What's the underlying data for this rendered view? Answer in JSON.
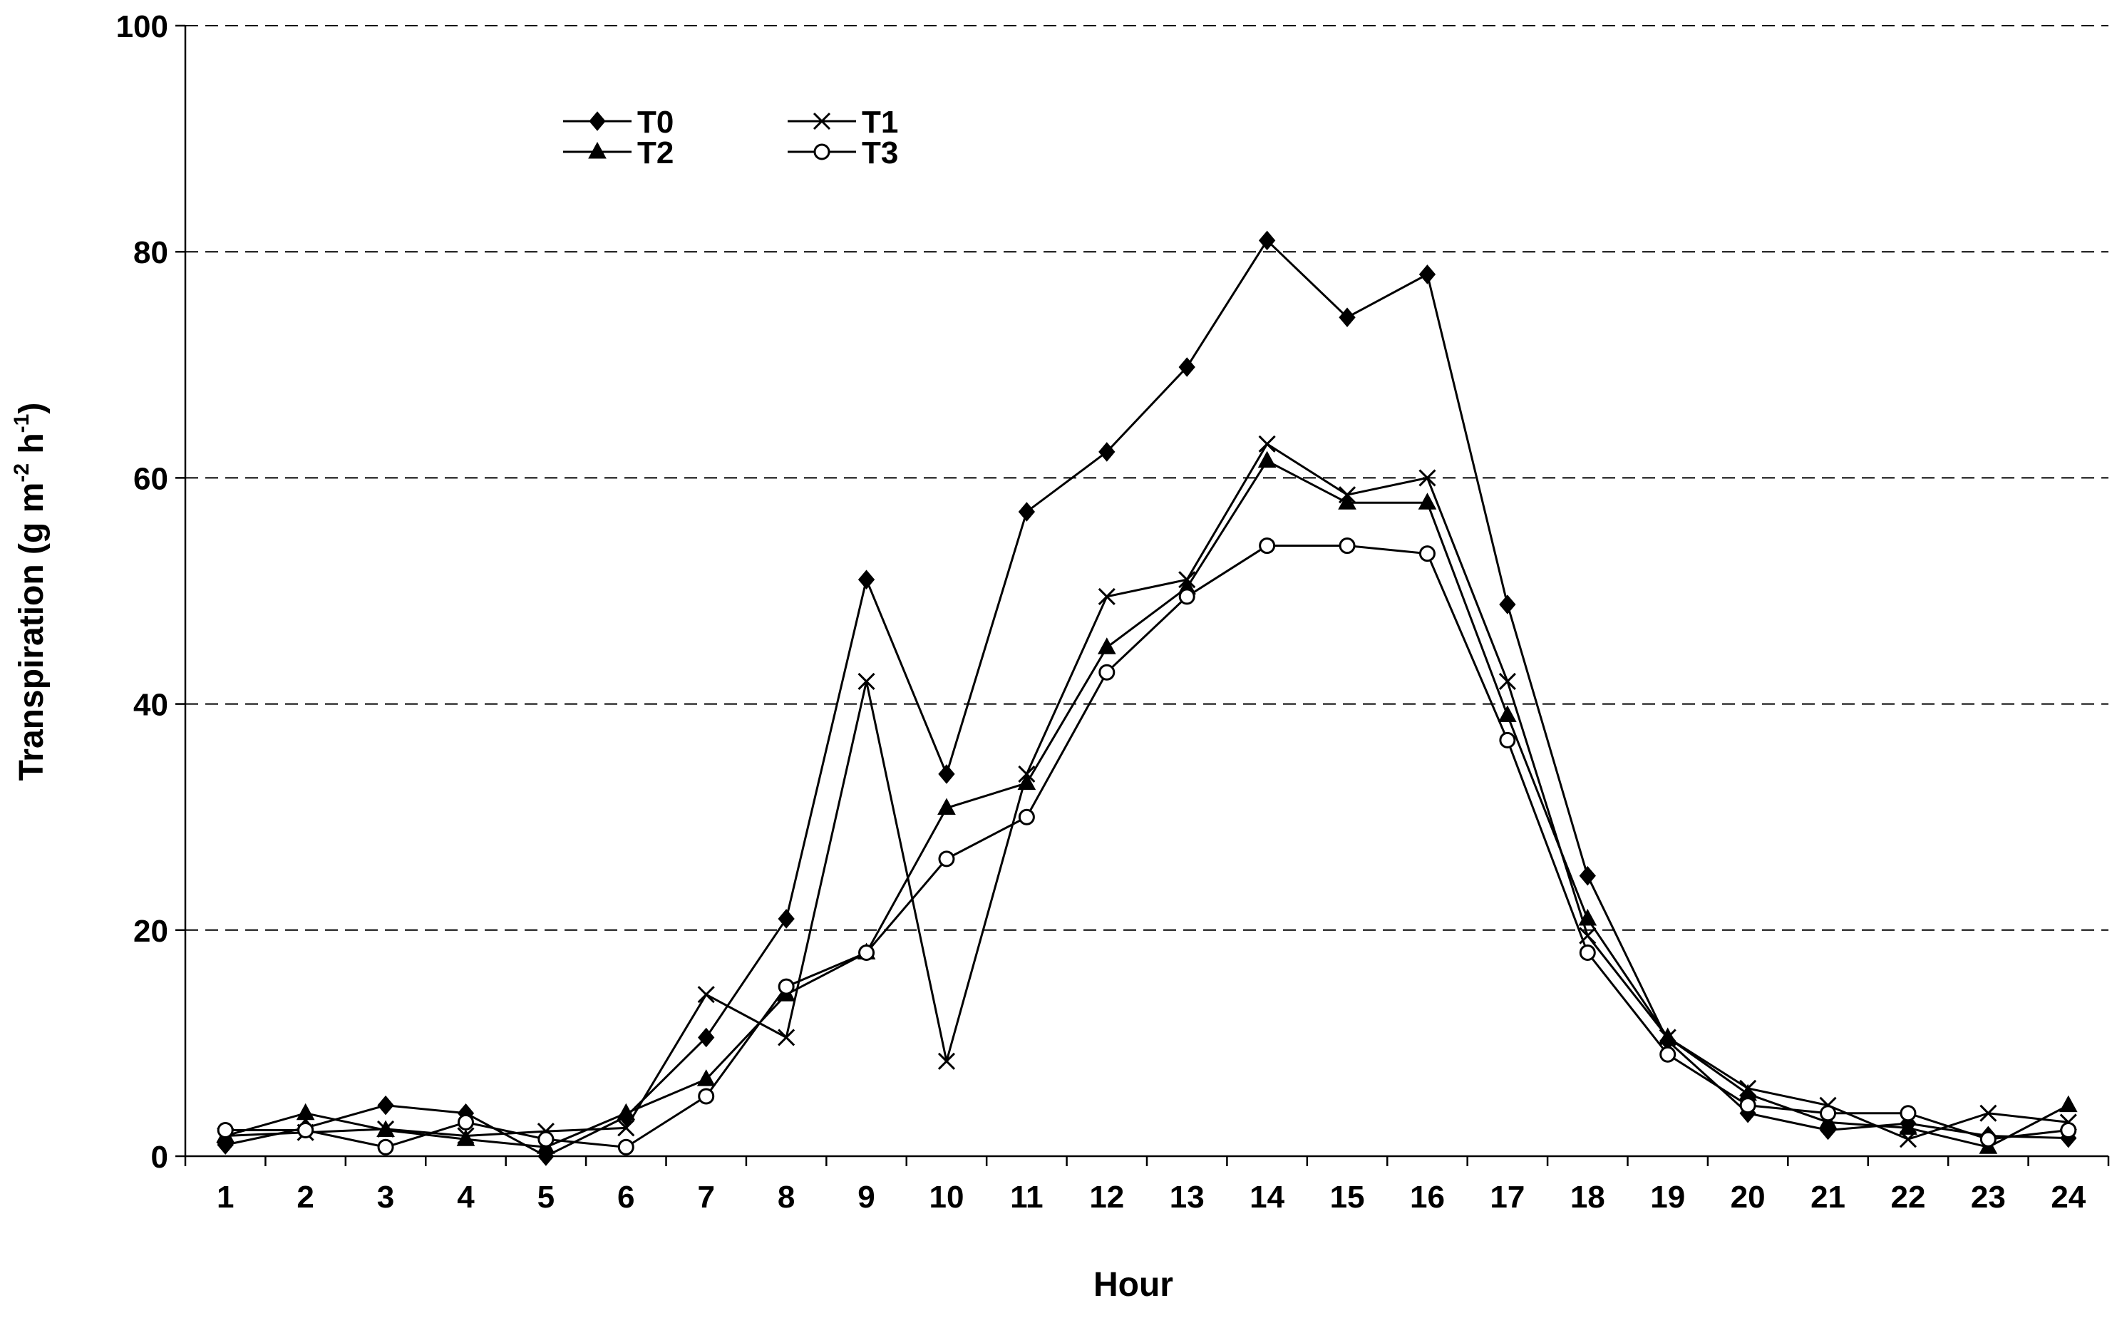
{
  "chart_data": {
    "type": "line",
    "title": "",
    "xlabel": "Hour",
    "ylabel": {
      "main": "Transpiration (g m",
      "sup1": "-2",
      "mid": " h",
      "sup2": "-1",
      "end": ")"
    },
    "ylim": [
      0,
      100
    ],
    "yticks": [
      0,
      20,
      40,
      60,
      80,
      100
    ],
    "ytick_labels": [
      "0",
      "20",
      "40",
      "60",
      "80",
      "100"
    ],
    "grid": "horizontal dashed",
    "legend_position": "top-left",
    "x": [
      1,
      2,
      3,
      4,
      5,
      6,
      7,
      8,
      9,
      10,
      11,
      12,
      13,
      14,
      15,
      16,
      17,
      18,
      19,
      20,
      21,
      22,
      23,
      24
    ],
    "xtick_labels": [
      "1",
      "2",
      "3",
      "4",
      "5",
      "6",
      "7",
      "8",
      "9",
      "10",
      "11",
      "12",
      "13",
      "14",
      "15",
      "16",
      "17",
      "18",
      "19",
      "20",
      "21",
      "22",
      "23",
      "24"
    ],
    "series": [
      {
        "name": "T0",
        "marker": "diamond",
        "color": "#000000",
        "values": [
          1.0,
          2.5,
          4.5,
          3.8,
          0.0,
          3.5,
          10.5,
          21.0,
          51.0,
          33.8,
          57.0,
          62.3,
          69.8,
          81.0,
          74.2,
          78.0,
          48.8,
          24.8,
          10.2,
          3.8,
          2.3,
          2.9,
          1.8,
          1.6
        ]
      },
      {
        "name": "T1",
        "marker": "x",
        "color": "#000000",
        "values": [
          1.8,
          2.1,
          2.4,
          1.8,
          2.2,
          2.5,
          14.3,
          10.5,
          42.0,
          8.4,
          33.8,
          49.5,
          51.0,
          63.0,
          58.5,
          60.0,
          42.0,
          19.5,
          10.5,
          6.0,
          4.5,
          1.5,
          3.8,
          3.0
        ]
      },
      {
        "name": "T2",
        "marker": "triangle",
        "color": "#000000",
        "values": [
          1.8,
          3.8,
          2.3,
          1.5,
          0.8,
          3.8,
          6.8,
          14.3,
          18.0,
          30.8,
          33.0,
          45.0,
          50.3,
          61.5,
          57.8,
          57.8,
          39.0,
          21.0,
          10.5,
          5.5,
          3.0,
          2.5,
          0.8,
          4.5
        ]
      },
      {
        "name": "T3",
        "marker": "circle",
        "color": "#000000",
        "values": [
          2.3,
          2.3,
          0.8,
          3.0,
          1.5,
          0.8,
          5.3,
          15.0,
          18.0,
          26.3,
          30.0,
          42.8,
          49.5,
          54.0,
          54.0,
          53.3,
          36.8,
          18.0,
          9.0,
          4.5,
          3.8,
          3.8,
          1.5,
          2.3
        ]
      }
    ]
  }
}
